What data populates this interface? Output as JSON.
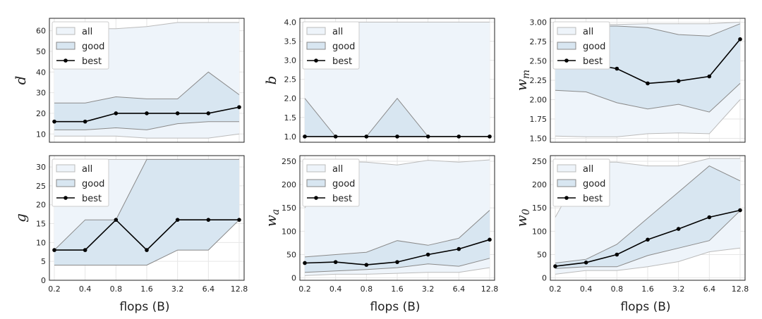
{
  "x_ticks": [
    "0.2",
    "0.4",
    "0.8",
    "1.6",
    "3.2",
    "6.4",
    "12.8"
  ],
  "xlabel": "flops (B)",
  "legend": {
    "all": "all",
    "good": "good",
    "best": "best"
  },
  "colors": {
    "all_fill": "#eef4fa",
    "all_edge": "#bbbbbb",
    "good_fill": "#d8e6f1",
    "good_edge": "#8a8a8a",
    "best": "#000000"
  },
  "chart_data": [
    {
      "type": "area",
      "ylabel": "d",
      "ylabel_sub": "",
      "ylim": [
        6,
        66
      ],
      "yticks": [
        10,
        20,
        30,
        40,
        50,
        60
      ],
      "series": [
        {
          "name": "all",
          "lower": [
            9,
            9,
            9,
            8,
            8,
            8,
            10
          ],
          "upper": [
            62,
            61,
            61,
            62,
            64,
            64,
            64
          ]
        },
        {
          "name": "good",
          "lower": [
            12,
            12,
            13,
            12,
            15,
            16,
            16
          ],
          "upper": [
            25,
            25,
            28,
            27,
            27,
            40,
            29
          ]
        },
        {
          "name": "best",
          "values": [
            16,
            16,
            20,
            20,
            20,
            20,
            23
          ]
        }
      ]
    },
    {
      "type": "area",
      "ylabel": "b",
      "ylabel_sub": "",
      "ylim": [
        0.85,
        4.1
      ],
      "yticks": [
        1.0,
        1.5,
        2.0,
        2.5,
        3.0,
        3.5,
        4.0
      ],
      "series": [
        {
          "name": "all",
          "lower": [
            1,
            1,
            1,
            1,
            1,
            1,
            1
          ],
          "upper": [
            4,
            4,
            4,
            4,
            4,
            4,
            4
          ]
        },
        {
          "name": "good",
          "lower": [
            1,
            1,
            1,
            1,
            1,
            1,
            1
          ],
          "upper": [
            2,
            1,
            1,
            2,
            1,
            1,
            1
          ]
        },
        {
          "name": "best",
          "values": [
            1,
            1,
            1,
            1,
            1,
            1,
            1
          ]
        }
      ]
    },
    {
      "type": "area",
      "ylabel": "w",
      "ylabel_sub": "m",
      "ylim": [
        1.45,
        3.05
      ],
      "yticks": [
        1.5,
        1.75,
        2.0,
        2.25,
        2.5,
        2.75,
        3.0
      ],
      "series": [
        {
          "name": "all",
          "lower": [
            1.53,
            1.52,
            1.52,
            1.56,
            1.57,
            1.56,
            2.0
          ],
          "upper": [
            2.98,
            2.97,
            2.97,
            2.98,
            2.98,
            2.98,
            3.0
          ]
        },
        {
          "name": "good",
          "lower": [
            2.12,
            2.1,
            1.96,
            1.88,
            1.94,
            1.84,
            2.21
          ],
          "upper": [
            2.95,
            2.95,
            2.95,
            2.93,
            2.84,
            2.82,
            2.98
          ]
        },
        {
          "name": "best",
          "values": [
            2.45,
            2.47,
            2.4,
            2.21,
            2.24,
            2.3,
            2.78
          ]
        }
      ]
    },
    {
      "type": "area",
      "ylabel": "g",
      "ylabel_sub": "",
      "ylim": [
        0,
        33
      ],
      "yticks": [
        0,
        5,
        10,
        15,
        20,
        25,
        30
      ],
      "series": [
        {
          "name": "all",
          "lower": [
            4,
            4,
            4,
            4,
            8,
            8,
            16
          ],
          "upper": [
            32,
            32,
            32,
            32,
            32,
            32,
            32
          ]
        },
        {
          "name": "good",
          "lower": [
            4,
            4,
            4,
            4,
            8,
            8,
            16
          ],
          "upper": [
            8,
            16,
            16,
            32,
            32,
            32,
            32
          ]
        },
        {
          "name": "best",
          "values": [
            8,
            8,
            16,
            8,
            16,
            16,
            16
          ]
        }
      ]
    },
    {
      "type": "area",
      "ylabel": "w",
      "ylabel_sub": "a",
      "ylim": [
        -5,
        262
      ],
      "yticks": [
        0,
        50,
        100,
        150,
        200,
        250
      ],
      "series": [
        {
          "name": "all",
          "lower": [
            5,
            8,
            8,
            10,
            12,
            12,
            22
          ],
          "upper": [
            150,
            250,
            248,
            242,
            252,
            248,
            253
          ]
        },
        {
          "name": "good",
          "lower": [
            12,
            15,
            18,
            22,
            30,
            25,
            42
          ],
          "upper": [
            45,
            50,
            55,
            80,
            70,
            85,
            145
          ]
        },
        {
          "name": "best",
          "values": [
            32,
            34,
            28,
            34,
            50,
            62,
            82
          ]
        }
      ]
    },
    {
      "type": "area",
      "ylabel": "w",
      "ylabel_sub": "0",
      "ylim": [
        -5,
        262
      ],
      "yticks": [
        0,
        50,
        100,
        150,
        200,
        250
      ],
      "series": [
        {
          "name": "all",
          "lower": [
            8,
            16,
            16,
            24,
            35,
            56,
            64
          ],
          "upper": [
            130,
            248,
            248,
            240,
            240,
            256,
            256
          ]
        },
        {
          "name": "good",
          "lower": [
            20,
            24,
            24,
            48,
            64,
            80,
            144
          ],
          "upper": [
            32,
            40,
            72,
            128,
            184,
            240,
            208
          ]
        },
        {
          "name": "best",
          "values": [
            25,
            33,
            50,
            82,
            105,
            130,
            145
          ]
        }
      ]
    }
  ]
}
